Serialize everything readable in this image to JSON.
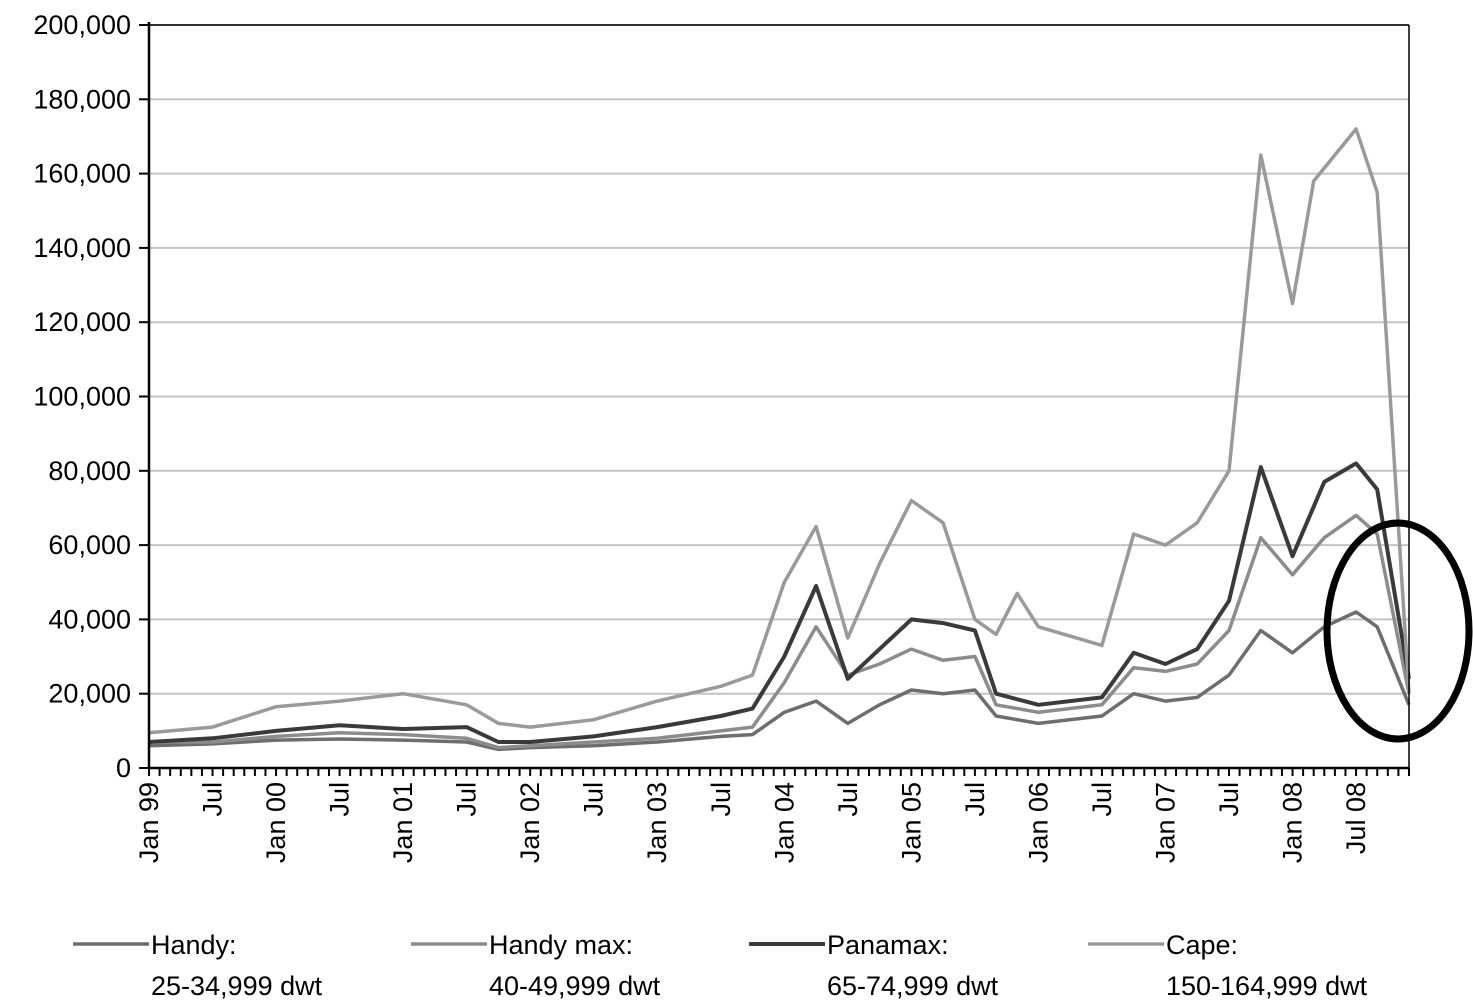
{
  "chart_data": {
    "type": "line",
    "title": "",
    "xlabel": "",
    "ylabel": "",
    "ylim": [
      0,
      200000
    ],
    "y_ticks": [
      "0",
      "20,000",
      "40,000",
      "60,000",
      "80,000",
      "100,000",
      "120,000",
      "140,000",
      "160,000",
      "180,000",
      "200,000"
    ],
    "x_ticks": [
      {
        "label": "Jan 99",
        "x": "1999-01"
      },
      {
        "label": "Jul",
        "x": "1999-07"
      },
      {
        "label": "Jan 00",
        "x": "2000-01"
      },
      {
        "label": "Jul",
        "x": "2000-07"
      },
      {
        "label": "Jan 01",
        "x": "2001-01"
      },
      {
        "label": "Jul",
        "x": "2001-07"
      },
      {
        "label": "Jan 02",
        "x": "2002-01"
      },
      {
        "label": "Jul",
        "x": "2002-07"
      },
      {
        "label": "Jan 03",
        "x": "2003-01"
      },
      {
        "label": "Jul",
        "x": "2003-07"
      },
      {
        "label": "Jan 04",
        "x": "2004-01"
      },
      {
        "label": "Jul",
        "x": "2004-07"
      },
      {
        "label": "Jan 05",
        "x": "2005-01"
      },
      {
        "label": "Jul",
        "x": "2005-07"
      },
      {
        "label": "Jan 06",
        "x": "2006-01"
      },
      {
        "label": "Jul",
        "x": "2006-07"
      },
      {
        "label": "Jan 07",
        "x": "2007-01"
      },
      {
        "label": "Jul",
        "x": "2007-07"
      },
      {
        "label": "Jan 08",
        "x": "2008-01"
      },
      {
        "label": "Jul 08",
        "x": "2008-07"
      }
    ],
    "x_range": [
      "1999-01",
      "2008-12"
    ],
    "grid": "horizontal",
    "legend_position": "bottom",
    "annotation": "ellipse highlighting the late-2008 decline",
    "series": [
      {
        "name": "Handy:",
        "name_line2": "25-34,999 dwt",
        "color": "#6e6e6e",
        "points": [
          [
            "1999-01",
            6000
          ],
          [
            "1999-07",
            6500
          ],
          [
            "2000-01",
            7500
          ],
          [
            "2000-07",
            7800
          ],
          [
            "2001-01",
            7500
          ],
          [
            "2001-07",
            7000
          ],
          [
            "2001-10",
            5000
          ],
          [
            "2002-01",
            5500
          ],
          [
            "2002-07",
            6000
          ],
          [
            "2003-01",
            7000
          ],
          [
            "2003-07",
            8500
          ],
          [
            "2003-10",
            9000
          ],
          [
            "2004-01",
            15000
          ],
          [
            "2004-04",
            18000
          ],
          [
            "2004-07",
            12000
          ],
          [
            "2004-10",
            17000
          ],
          [
            "2005-01",
            21000
          ],
          [
            "2005-04",
            20000
          ],
          [
            "2005-07",
            21000
          ],
          [
            "2005-09",
            14000
          ],
          [
            "2006-01",
            12000
          ],
          [
            "2006-07",
            14000
          ],
          [
            "2006-10",
            20000
          ],
          [
            "2007-01",
            18000
          ],
          [
            "2007-04",
            19000
          ],
          [
            "2007-07",
            25000
          ],
          [
            "2007-10",
            37000
          ],
          [
            "2008-01",
            31000
          ],
          [
            "2008-04",
            38000
          ],
          [
            "2008-07",
            42000
          ],
          [
            "2008-09",
            38000
          ],
          [
            "2008-12",
            17000
          ]
        ]
      },
      {
        "name": "Handy max:",
        "name_line2": "40-49,999 dwt",
        "color": "#8c8c8c",
        "points": [
          [
            "1999-01",
            7000
          ],
          [
            "1999-07",
            7000
          ],
          [
            "2000-01",
            8500
          ],
          [
            "2000-07",
            9500
          ],
          [
            "2001-01",
            9000
          ],
          [
            "2001-07",
            8000
          ],
          [
            "2001-10",
            5500
          ],
          [
            "2002-01",
            6000
          ],
          [
            "2002-07",
            7000
          ],
          [
            "2003-01",
            8000
          ],
          [
            "2003-07",
            10000
          ],
          [
            "2003-10",
            11000
          ],
          [
            "2004-01",
            23000
          ],
          [
            "2004-04",
            38000
          ],
          [
            "2004-07",
            25000
          ],
          [
            "2004-10",
            28000
          ],
          [
            "2005-01",
            32000
          ],
          [
            "2005-04",
            29000
          ],
          [
            "2005-07",
            30000
          ],
          [
            "2005-09",
            17000
          ],
          [
            "2006-01",
            15000
          ],
          [
            "2006-07",
            17000
          ],
          [
            "2006-10",
            27000
          ],
          [
            "2007-01",
            26000
          ],
          [
            "2007-04",
            28000
          ],
          [
            "2007-07",
            37000
          ],
          [
            "2007-10",
            62000
          ],
          [
            "2008-01",
            52000
          ],
          [
            "2008-04",
            62000
          ],
          [
            "2008-07",
            68000
          ],
          [
            "2008-09",
            63000
          ],
          [
            "2008-12",
            20000
          ]
        ]
      },
      {
        "name": "Panamax:",
        "name_line2": "65-74,999 dwt",
        "color": "#3a3a3a",
        "points": [
          [
            "1999-01",
            7000
          ],
          [
            "1999-07",
            8000
          ],
          [
            "2000-01",
            10000
          ],
          [
            "2000-07",
            11500
          ],
          [
            "2001-01",
            10500
          ],
          [
            "2001-07",
            11000
          ],
          [
            "2001-10",
            7000
          ],
          [
            "2002-01",
            7000
          ],
          [
            "2002-07",
            8500
          ],
          [
            "2003-01",
            11000
          ],
          [
            "2003-07",
            14000
          ],
          [
            "2003-10",
            16000
          ],
          [
            "2004-01",
            30000
          ],
          [
            "2004-04",
            49000
          ],
          [
            "2004-07",
            24000
          ],
          [
            "2004-10",
            32000
          ],
          [
            "2005-01",
            40000
          ],
          [
            "2005-04",
            39000
          ],
          [
            "2005-07",
            37000
          ],
          [
            "2005-09",
            20000
          ],
          [
            "2006-01",
            17000
          ],
          [
            "2006-07",
            19000
          ],
          [
            "2006-10",
            31000
          ],
          [
            "2007-01",
            28000
          ],
          [
            "2007-04",
            32000
          ],
          [
            "2007-07",
            45000
          ],
          [
            "2007-10",
            81000
          ],
          [
            "2008-01",
            57000
          ],
          [
            "2008-04",
            77000
          ],
          [
            "2008-07",
            82000
          ],
          [
            "2008-09",
            75000
          ],
          [
            "2008-12",
            24000
          ]
        ]
      },
      {
        "name": "Cape:",
        "name_line2": "150-164,999 dwt",
        "color": "#9a9a9a",
        "points": [
          [
            "1999-01",
            9500
          ],
          [
            "1999-07",
            11000
          ],
          [
            "2000-01",
            16500
          ],
          [
            "2000-07",
            18000
          ],
          [
            "2001-01",
            20000
          ],
          [
            "2001-07",
            17000
          ],
          [
            "2001-10",
            12000
          ],
          [
            "2002-01",
            11000
          ],
          [
            "2002-07",
            13000
          ],
          [
            "2003-01",
            18000
          ],
          [
            "2003-07",
            22000
          ],
          [
            "2003-10",
            25000
          ],
          [
            "2004-01",
            50000
          ],
          [
            "2004-04",
            65000
          ],
          [
            "2004-07",
            35000
          ],
          [
            "2004-10",
            55000
          ],
          [
            "2005-01",
            72000
          ],
          [
            "2005-04",
            66000
          ],
          [
            "2005-07",
            40000
          ],
          [
            "2005-09",
            36000
          ],
          [
            "2005-11",
            47000
          ],
          [
            "2006-01",
            38000
          ],
          [
            "2006-07",
            33000
          ],
          [
            "2006-10",
            63000
          ],
          [
            "2007-01",
            60000
          ],
          [
            "2007-04",
            66000
          ],
          [
            "2007-07",
            80000
          ],
          [
            "2007-10",
            165000
          ],
          [
            "2008-01",
            125000
          ],
          [
            "2008-03",
            158000
          ],
          [
            "2008-05",
            165000
          ],
          [
            "2008-07",
            172000
          ],
          [
            "2008-09",
            155000
          ],
          [
            "2008-12",
            20000
          ]
        ]
      }
    ]
  }
}
